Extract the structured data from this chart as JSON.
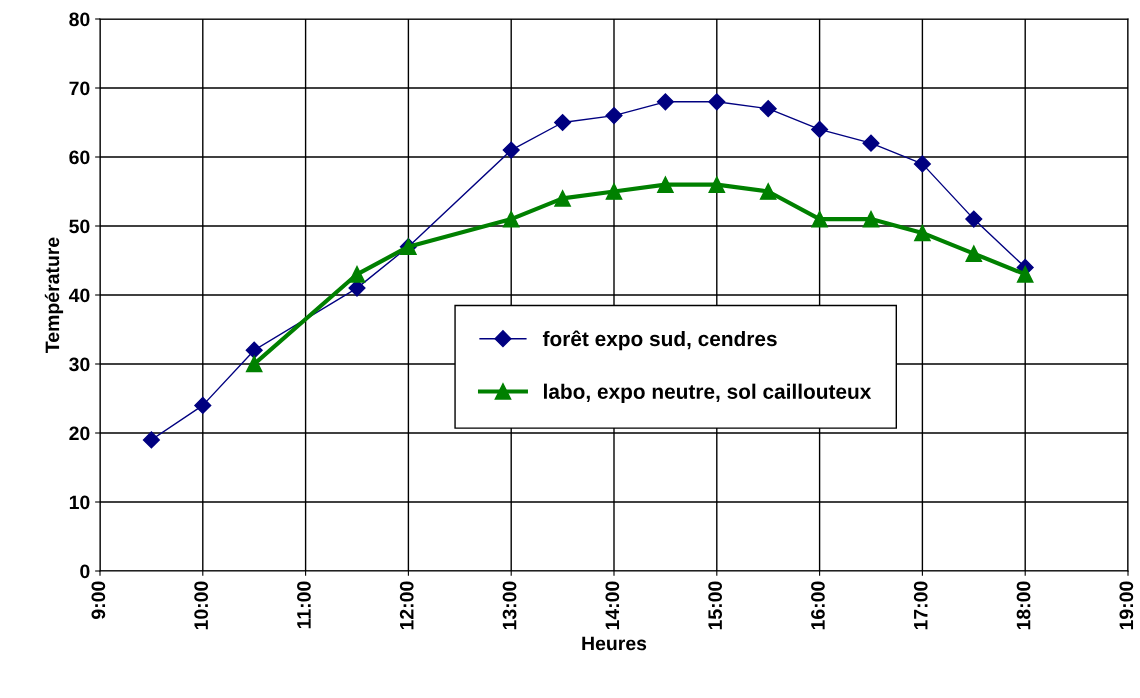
{
  "chart_data": {
    "type": "line",
    "xlabel": "Heures",
    "ylabel": "Température",
    "series": [
      {
        "name": "forêt expo sud, cendres",
        "color": "#000080",
        "marker": "diamond",
        "x": [
          9.5,
          10,
          10.5,
          11.5,
          12,
          13,
          13.5,
          14,
          14.5,
          15,
          15.5,
          16,
          16.5,
          17,
          17.5,
          18
        ],
        "values": [
          19,
          24,
          32,
          41,
          47,
          61,
          65,
          66,
          68,
          68,
          67,
          64,
          62,
          59,
          51,
          44
        ]
      },
      {
        "name": "labo, expo neutre, sol caillouteux",
        "color": "#008000",
        "marker": "triangle",
        "x": [
          10.5,
          11.5,
          12,
          13,
          13.5,
          14,
          14.5,
          15,
          15.5,
          16,
          16.5,
          17,
          17.5,
          18
        ],
        "values": [
          30,
          43,
          47,
          51,
          54,
          55,
          56,
          56,
          55,
          51,
          51,
          49,
          46,
          43
        ]
      }
    ],
    "xlim": [
      9,
      19
    ],
    "xticks": [
      {
        "value": 9,
        "label": "9:00"
      },
      {
        "value": 10,
        "label": "10:00"
      },
      {
        "value": 11,
        "label": "11:00"
      },
      {
        "value": 12,
        "label": "12:00"
      },
      {
        "value": 13,
        "label": "13:00"
      },
      {
        "value": 14,
        "label": "14:00"
      },
      {
        "value": 15,
        "label": "15:00"
      },
      {
        "value": 16,
        "label": "16:00"
      },
      {
        "value": 17,
        "label": "17:00"
      },
      {
        "value": 18,
        "label": "18:00"
      },
      {
        "value": 19,
        "label": "19:00"
      }
    ],
    "ylim": [
      0,
      80
    ],
    "yticks": [
      0,
      10,
      20,
      30,
      40,
      50,
      60,
      70,
      80
    ],
    "grid": true,
    "legend": "center",
    "line_style": "solid"
  }
}
